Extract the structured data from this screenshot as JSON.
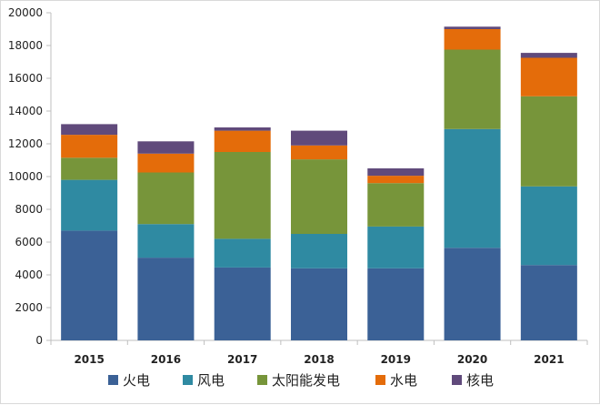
{
  "chart_data": {
    "type": "bar",
    "stacked": true,
    "categories": [
      "2015",
      "2016",
      "2017",
      "2018",
      "2019",
      "2020",
      "2021"
    ],
    "series": [
      {
        "name": "火电",
        "color": "#3b6196",
        "values": [
          6700,
          5050,
          4450,
          4400,
          4400,
          5650,
          4600
        ]
      },
      {
        "name": "风电",
        "color": "#2f8aa2",
        "values": [
          3100,
          2050,
          1750,
          2100,
          2550,
          7250,
          4800
        ]
      },
      {
        "name": "太阳能发电",
        "color": "#77953a",
        "values": [
          1350,
          3150,
          5300,
          4550,
          2650,
          4850,
          5500
        ]
      },
      {
        "name": "水电",
        "color": "#e46c0a",
        "values": [
          1400,
          1150,
          1300,
          850,
          450,
          1250,
          2350
        ]
      },
      {
        "name": "核电",
        "color": "#604a7b",
        "values": [
          650,
          750,
          200,
          900,
          450,
          150,
          300
        ]
      }
    ],
    "y_ticks": [
      "0",
      "2000",
      "4000",
      "6000",
      "8000",
      "10000",
      "12000",
      "14000",
      "16000",
      "18000",
      "20000"
    ],
    "ylim": [
      0,
      20000
    ],
    "grid": false,
    "legend_position": "bottom"
  }
}
